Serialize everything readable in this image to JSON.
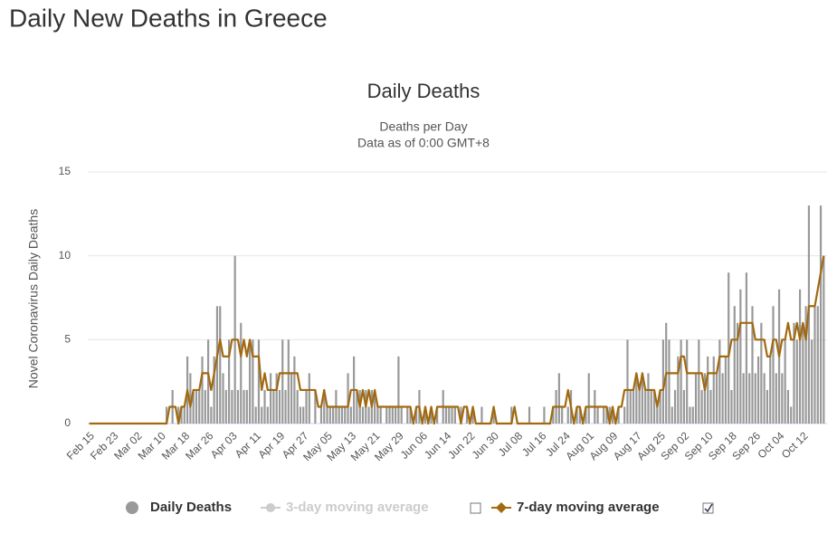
{
  "page": {
    "title": "Daily New Deaths in Greece"
  },
  "chart_data": {
    "type": "bar",
    "title": "Daily Deaths",
    "subtitle": [
      "Deaths per Day",
      "Data as of 0:00 GMT+8"
    ],
    "y_label": "Novel Coronavirus Daily Deaths",
    "ylim": [
      0,
      15
    ],
    "yticks": [
      0,
      5,
      10,
      15
    ],
    "grid": true,
    "legend": "bottom",
    "categories": [
      "Feb 15",
      null,
      null,
      null,
      null,
      null,
      null,
      null,
      "Feb 23",
      null,
      null,
      null,
      null,
      null,
      null,
      null,
      "Mar 02",
      null,
      null,
      null,
      null,
      null,
      null,
      null,
      "Mar 10",
      null,
      null,
      null,
      null,
      null,
      null,
      null,
      "Mar 18",
      null,
      null,
      null,
      null,
      null,
      null,
      null,
      "Mar 26",
      null,
      null,
      null,
      null,
      null,
      null,
      null,
      "Apr 03",
      null,
      null,
      null,
      null,
      null,
      null,
      null,
      "Apr 11",
      null,
      null,
      null,
      null,
      null,
      null,
      null,
      "Apr 19",
      null,
      null,
      null,
      null,
      null,
      null,
      null,
      "Apr 27",
      null,
      null,
      null,
      null,
      null,
      null,
      null,
      "May 05",
      null,
      null,
      null,
      null,
      null,
      null,
      null,
      "May 13",
      null,
      null,
      null,
      null,
      null,
      null,
      null,
      "May 21",
      null,
      null,
      null,
      null,
      null,
      null,
      null,
      "May 29",
      null,
      null,
      null,
      null,
      null,
      null,
      null,
      "Jun 06",
      null,
      null,
      null,
      null,
      null,
      null,
      null,
      "Jun 14",
      null,
      null,
      null,
      null,
      null,
      null,
      null,
      "Jun 22",
      null,
      null,
      null,
      null,
      null,
      null,
      null,
      "Jun 30",
      null,
      null,
      null,
      null,
      null,
      null,
      null,
      "Jul 08",
      null,
      null,
      null,
      null,
      null,
      null,
      null,
      "Jul 16",
      null,
      null,
      null,
      null,
      null,
      null,
      null,
      "Jul 24",
      null,
      null,
      null,
      null,
      null,
      null,
      null,
      "Aug 01",
      null,
      null,
      null,
      null,
      null,
      null,
      null,
      "Aug 09",
      null,
      null,
      null,
      null,
      null,
      null,
      null,
      "Aug 17",
      null,
      null,
      null,
      null,
      null,
      null,
      null,
      "Aug 25",
      null,
      null,
      null,
      null,
      null,
      null,
      null,
      "Sep 02",
      null,
      null,
      null,
      null,
      null,
      null,
      null,
      "Sep 10",
      null,
      null,
      null,
      null,
      null,
      null,
      null,
      "Sep 18",
      null,
      null,
      null,
      null,
      null,
      null,
      null,
      "Sep 26",
      null,
      null,
      null,
      null,
      null,
      null,
      null,
      "Oct 04",
      null,
      null,
      null,
      null,
      null,
      null,
      null,
      "Oct 12",
      null,
      null,
      null,
      null,
      null,
      null,
      null
    ],
    "series": [
      {
        "name": "Daily Deaths",
        "type": "bar",
        "color": "#999999",
        "values": [
          0,
          0,
          0,
          0,
          0,
          0,
          0,
          0,
          0,
          0,
          0,
          0,
          0,
          0,
          0,
          0,
          0,
          0,
          0,
          0,
          0,
          0,
          0,
          0,
          0,
          0,
          1,
          0,
          2,
          0,
          1,
          1,
          1,
          4,
          3,
          2,
          2,
          2,
          4,
          2,
          5,
          1,
          4,
          7,
          7,
          3,
          2,
          5,
          2,
          10,
          2,
          6,
          2,
          2,
          5,
          5,
          1,
          5,
          1,
          2,
          1,
          3,
          2,
          3,
          2,
          5,
          2,
          5,
          3,
          4,
          2,
          1,
          1,
          2,
          3,
          0,
          2,
          0,
          1,
          2,
          1,
          1,
          1,
          2,
          1,
          1,
          1,
          3,
          1,
          4,
          2,
          2,
          1,
          2,
          1,
          2,
          2,
          1,
          1,
          0,
          1,
          1,
          1,
          1,
          4,
          1,
          0,
          1,
          1,
          0,
          1,
          2,
          0,
          1,
          0,
          1,
          0,
          1,
          0,
          2,
          1,
          1,
          1,
          1,
          0,
          1,
          0,
          1,
          0,
          1,
          0,
          0,
          1,
          0,
          0,
          0,
          1,
          0,
          0,
          0,
          0,
          0,
          1,
          0,
          0,
          0,
          0,
          0,
          1,
          0,
          0,
          0,
          0,
          1,
          0,
          0,
          1,
          2,
          3,
          1,
          0,
          1,
          2,
          0,
          1,
          1,
          0,
          1,
          3,
          0,
          2,
          1,
          0,
          1,
          1,
          1,
          1,
          0,
          1,
          0,
          1,
          5,
          2,
          2,
          3,
          2,
          3,
          2,
          3,
          2,
          2,
          1,
          2,
          5,
          6,
          5,
          1,
          2,
          4,
          5,
          2,
          5,
          1,
          1,
          3,
          5,
          2,
          3,
          4,
          2,
          4,
          3,
          5,
          3,
          4,
          9,
          2,
          7,
          6,
          8,
          3,
          9,
          3,
          7,
          3,
          4,
          6,
          3,
          2,
          4,
          7,
          3,
          8,
          3,
          5,
          2,
          1,
          6,
          5,
          8,
          6,
          7,
          13,
          5,
          7,
          7,
          13,
          10
        ]
      },
      {
        "name": "3-day moving average",
        "type": "line",
        "color": "#cccccc",
        "visible": false
      },
      {
        "name": "7-day moving average",
        "type": "line",
        "color": "#a2690f",
        "visible": true,
        "values": [
          0,
          0,
          0,
          0,
          0,
          0,
          0,
          0,
          0,
          0,
          0,
          0,
          0,
          0,
          0,
          0,
          0,
          0,
          0,
          0,
          0,
          0,
          0,
          0,
          0,
          0,
          0,
          1,
          1,
          1,
          0,
          1,
          1,
          2,
          1,
          2,
          2,
          2,
          3,
          3,
          3,
          2,
          3,
          4,
          5,
          4,
          4,
          4,
          5,
          5,
          5,
          4,
          5,
          4,
          5,
          4,
          4,
          4,
          2,
          3,
          2,
          2,
          2,
          2,
          3,
          3,
          3,
          3,
          3,
          3,
          3,
          2,
          2,
          2,
          2,
          2,
          2,
          1,
          1,
          2,
          1,
          1,
          1,
          1,
          1,
          1,
          1,
          1,
          2,
          2,
          2,
          1,
          2,
          1,
          2,
          1,
          2,
          1,
          1,
          1,
          1,
          1,
          1,
          1,
          1,
          1,
          1,
          1,
          1,
          0,
          1,
          1,
          0,
          1,
          0,
          1,
          0,
          1,
          1,
          1,
          1,
          1,
          1,
          1,
          1,
          0,
          1,
          1,
          0,
          1,
          0,
          0,
          0,
          0,
          0,
          0,
          1,
          0,
          0,
          0,
          0,
          0,
          0,
          1,
          0,
          0,
          0,
          0,
          0,
          0,
          0,
          0,
          0,
          0,
          0,
          0,
          1,
          1,
          1,
          1,
          1,
          2,
          1,
          0,
          1,
          1,
          0,
          1,
          1,
          1,
          1,
          1,
          1,
          1,
          1,
          0,
          1,
          0,
          1,
          1,
          2,
          2,
          2,
          2,
          3,
          2,
          3,
          2,
          2,
          2,
          2,
          1,
          2,
          2,
          3,
          3,
          3,
          3,
          3,
          4,
          4,
          3,
          3,
          3,
          3,
          3,
          3,
          2,
          3,
          3,
          3,
          3,
          4,
          4,
          4,
          4,
          5,
          5,
          5,
          6,
          6,
          6,
          6,
          6,
          5,
          5,
          5,
          5,
          4,
          4,
          5,
          5,
          4,
          5,
          5,
          6,
          5,
          5,
          6,
          5,
          6,
          5,
          7,
          7,
          7,
          8,
          9,
          10
        ]
      }
    ]
  }
}
